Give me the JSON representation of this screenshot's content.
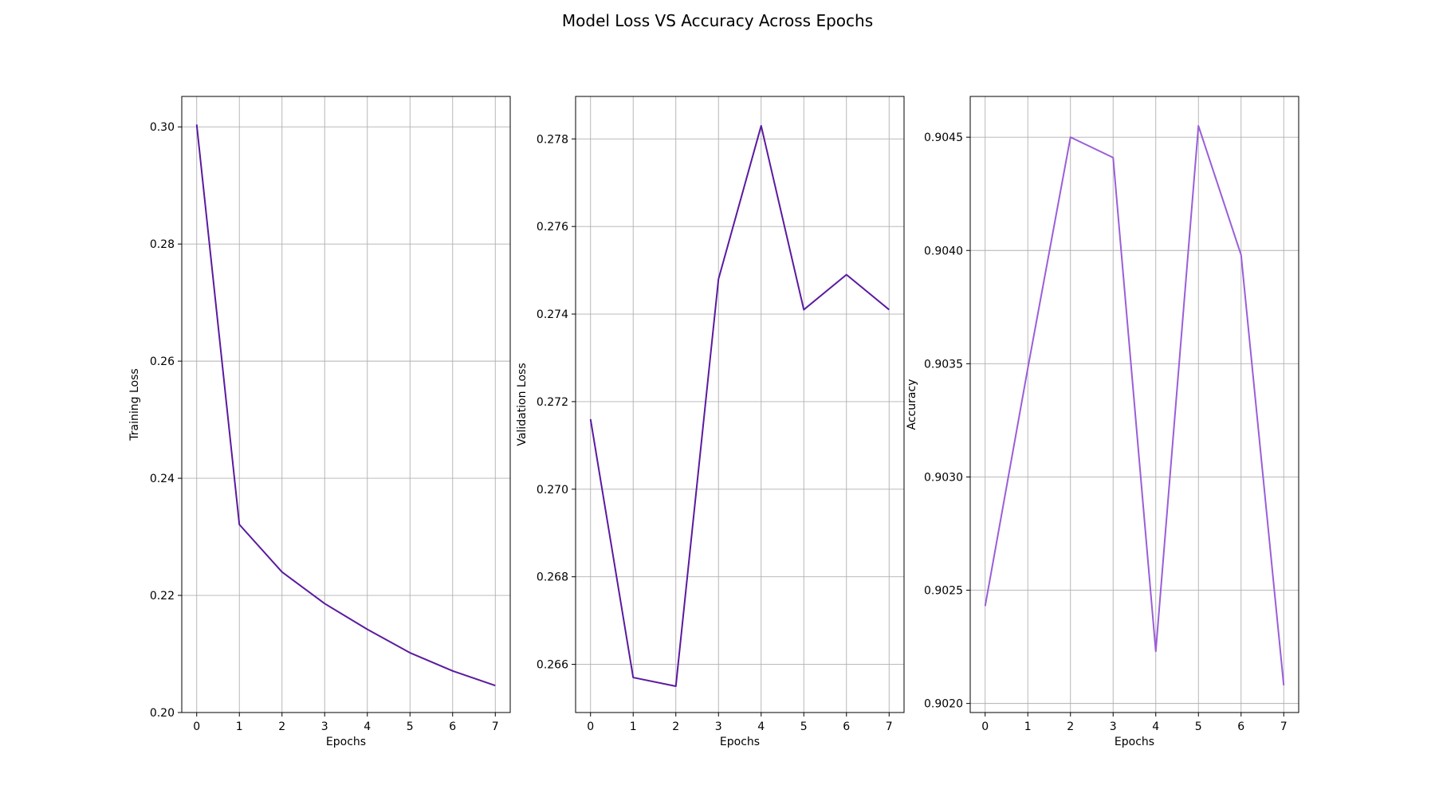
{
  "figure": {
    "title": "Model Loss VS Accuracy Across Epochs"
  },
  "chart_data": [
    {
      "type": "line",
      "xlabel": "Epochs",
      "ylabel": "Training Loss",
      "x": [
        0,
        1,
        2,
        3,
        4,
        5,
        6,
        7
      ],
      "xlim": [
        -0.35,
        7.35
      ],
      "xticks": [
        0,
        1,
        2,
        3,
        4,
        5,
        6,
        7
      ],
      "ylim": [
        0.2,
        0.3052
      ],
      "yticks": [
        0.2,
        0.22,
        0.24,
        0.26,
        0.28,
        0.3
      ],
      "ytick_labels": [
        "0.20",
        "0.22",
        "0.24",
        "0.26",
        "0.28",
        "0.30"
      ],
      "grid": true,
      "series": [
        {
          "color": "#5a1aa0",
          "values": [
            0.3004,
            0.2321,
            0.224,
            0.2186,
            0.2142,
            0.2102,
            0.2071,
            0.2046
          ]
        }
      ]
    },
    {
      "type": "line",
      "xlabel": "Epochs",
      "ylabel": "Validation Loss",
      "x": [
        0,
        1,
        2,
        3,
        4,
        5,
        6,
        7
      ],
      "xlim": [
        -0.35,
        7.35
      ],
      "xticks": [
        0,
        1,
        2,
        3,
        4,
        5,
        6,
        7
      ],
      "ylim": [
        0.2649,
        0.27897
      ],
      "yticks": [
        0.266,
        0.268,
        0.27,
        0.272,
        0.274,
        0.276,
        0.278
      ],
      "ytick_labels": [
        "0.266",
        "0.268",
        "0.270",
        "0.272",
        "0.274",
        "0.276",
        "0.278"
      ],
      "grid": true,
      "series": [
        {
          "color": "#5a1aa0",
          "values": [
            0.2716,
            0.2657,
            0.2655,
            0.2748,
            0.2783,
            0.2741,
            0.2749,
            0.2741
          ]
        }
      ]
    },
    {
      "type": "line",
      "xlabel": "Epochs",
      "ylabel": "Accuracy",
      "x": [
        0,
        1,
        2,
        3,
        4,
        5,
        6,
        7
      ],
      "xlim": [
        -0.35,
        7.35
      ],
      "xticks": [
        0,
        1,
        2,
        3,
        4,
        5,
        6,
        7
      ],
      "ylim": [
        0.90196,
        0.90468
      ],
      "yticks": [
        0.902,
        0.9025,
        0.903,
        0.9035,
        0.904,
        0.9045
      ],
      "ytick_labels": [
        "0.9020",
        "0.9025",
        "0.9030",
        "0.9035",
        "0.9040",
        "0.9045"
      ],
      "grid": true,
      "series": [
        {
          "color": "#9a5ed8",
          "values": [
            0.90243,
            0.90348,
            0.9045,
            0.90441,
            0.90223,
            0.90455,
            0.90398,
            0.90208
          ]
        }
      ]
    }
  ]
}
